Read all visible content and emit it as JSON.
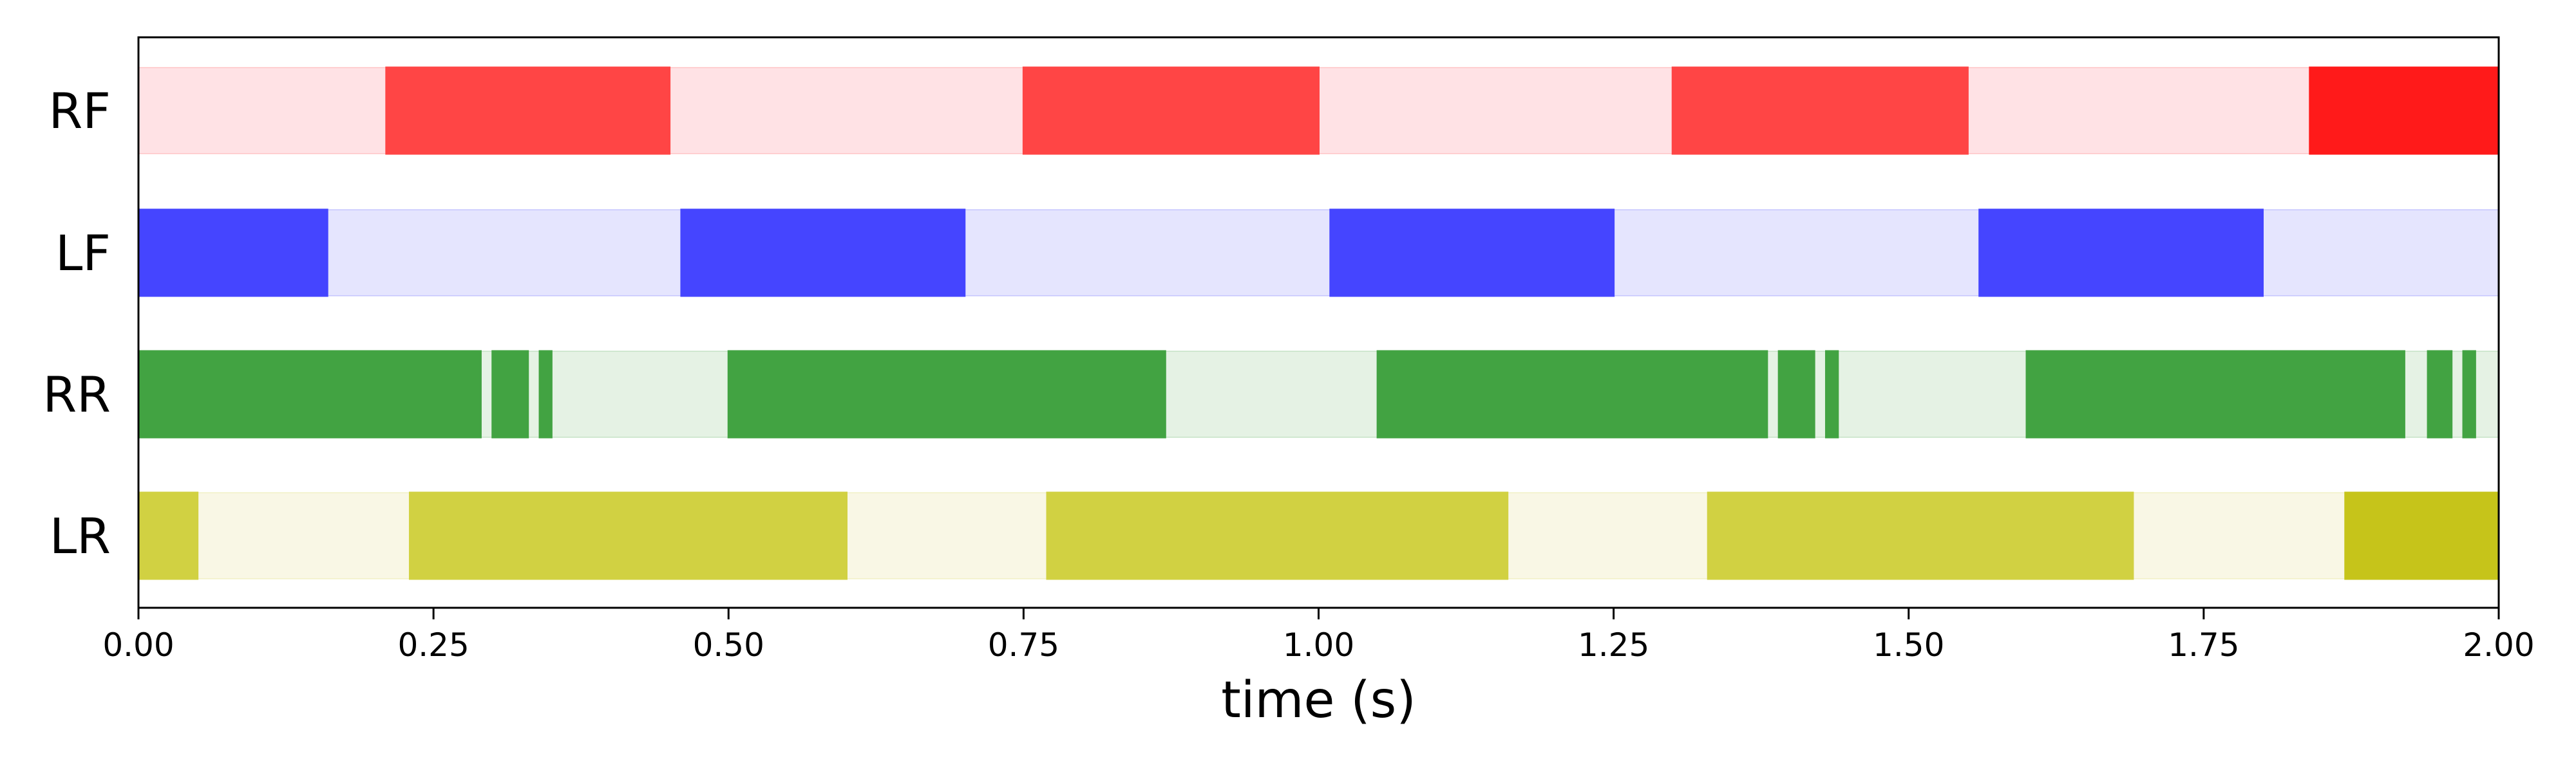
{
  "chart_data": {
    "type": "gantt",
    "xlabel": "time (s)",
    "xlim": [
      0,
      2
    ],
    "xticks": [
      0,
      0.25,
      0.5,
      0.75,
      1.0,
      1.25,
      1.5,
      1.75,
      2.0
    ],
    "xtick_labels": [
      "0.00",
      "0.25",
      "0.50",
      "0.75",
      "1.00",
      "1.25",
      "1.50",
      "1.75",
      "2.00"
    ],
    "grid": false,
    "rows": [
      {
        "label": "RF",
        "color": "#ff4545",
        "light_color": "#ffe2e5",
        "final_color": "#ff1a1a",
        "segments": [
          [
            0.21,
            0.45
          ],
          [
            0.75,
            1.0
          ],
          [
            1.3,
            1.55
          ],
          [
            1.84,
            2.0
          ]
        ]
      },
      {
        "label": "LF",
        "color": "#4545ff",
        "light_color": "#e5e5fe",
        "final_color": "#4545ff",
        "segments": [
          [
            0.0,
            0.16
          ],
          [
            0.46,
            0.7
          ],
          [
            1.01,
            1.25
          ],
          [
            1.56,
            1.8
          ]
        ]
      },
      {
        "label": "RR",
        "color": "#42a342",
        "light_color": "#e5f2e4",
        "final_color": "#42a342",
        "segments": [
          [
            0.0,
            0.29
          ],
          [
            0.3,
            0.33
          ],
          [
            0.34,
            0.35
          ],
          [
            0.5,
            0.87
          ],
          [
            1.05,
            1.38
          ],
          [
            1.39,
            1.42
          ],
          [
            1.43,
            1.44
          ],
          [
            1.6,
            1.92
          ],
          [
            1.94,
            1.96
          ],
          [
            1.97,
            1.98
          ]
        ]
      },
      {
        "label": "LR",
        "color": "#d1d142",
        "light_color": "#f9f7e5",
        "final_color": "#c6c41a",
        "segments": [
          [
            0.0,
            0.05
          ],
          [
            0.23,
            0.6
          ],
          [
            0.77,
            1.16
          ],
          [
            1.33,
            1.69
          ],
          [
            1.87,
            2.0
          ]
        ]
      }
    ]
  }
}
